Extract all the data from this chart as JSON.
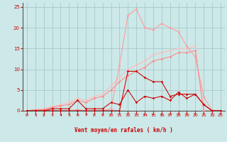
{
  "background_color": "#cce8e8",
  "grid_color": "#a0c4c4",
  "xlabel": "Vent moyen/en rafales ( km/h )",
  "xlabel_color": "#cc0000",
  "yticks": [
    0,
    5,
    10,
    15,
    20,
    25
  ],
  "ylim": [
    0,
    26
  ],
  "xlim": [
    -0.5,
    23.5
  ],
  "x_labels": [
    0,
    1,
    2,
    3,
    4,
    5,
    6,
    7,
    8,
    9,
    10,
    11,
    12,
    13,
    14,
    15,
    16,
    17,
    18,
    19,
    20,
    21,
    22,
    23
  ],
  "tick_color": "#cc0000",
  "axis_color": "#666666",
  "arrow_color": "#cc0000",
  "line_rafales_y": [
    0,
    0,
    0,
    0,
    0,
    0,
    0.3,
    0,
    0,
    0,
    0.5,
    11,
    23,
    24.5,
    20,
    19.5,
    21,
    20,
    19,
    15.5,
    13,
    3.5,
    0,
    0
  ],
  "line_rafales_color": "#ff9999",
  "line_moy_upper_y": [
    0,
    0.3,
    0.5,
    1,
    1.5,
    2,
    3,
    2.5,
    3.5,
    4,
    6,
    8,
    10,
    11,
    12,
    13.5,
    14,
    14.5,
    15,
    15,
    15.5,
    0,
    0,
    0
  ],
  "line_moy_upper_color": "#ffbbbb",
  "line_moy_lower_y": [
    0,
    0.2,
    0.3,
    0.8,
    1.2,
    1.5,
    2.5,
    2,
    3,
    3.5,
    5,
    7,
    8.5,
    9.5,
    10.5,
    12,
    12.5,
    13,
    14,
    14,
    14.5,
    0,
    0,
    0
  ],
  "line_moy_lower_color": "#ff8888",
  "line_dark_peak_y": [
    0,
    0,
    0,
    0,
    0,
    0,
    0,
    0,
    0,
    0,
    0,
    0,
    9.5,
    9.5,
    8,
    7,
    7,
    3.5,
    4,
    4,
    4,
    1.5,
    0,
    0
  ],
  "line_dark_peak_color": "#cc0000",
  "line_dark_noisy_y": [
    0,
    0,
    0,
    0.5,
    0.5,
    0.5,
    2.5,
    0.5,
    0.5,
    0.5,
    2,
    1.5,
    5,
    2,
    3.5,
    3,
    3.5,
    2.5,
    4.5,
    3,
    4,
    1.5,
    0,
    0
  ],
  "line_dark_noisy_color": "#cc0000",
  "lw": 0.75,
  "ms": 1.8
}
